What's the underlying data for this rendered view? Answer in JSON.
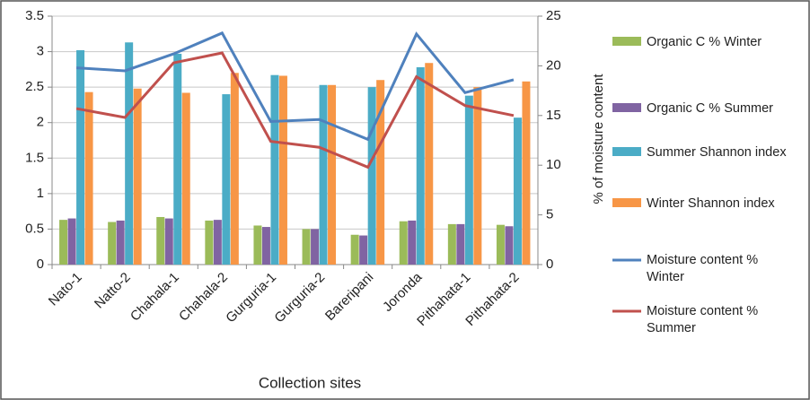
{
  "chart_data": {
    "type": "bar",
    "x_label": "Collection sites",
    "y2_label": "% of moisture content",
    "categories": [
      "Nato-1",
      "Natto-2",
      "Chahala-1",
      "Chahala-2",
      "Gurguria-1",
      "Gurguria-2",
      "Bareripani",
      "Joronda",
      "Pithahata-1",
      "Pithahata-2"
    ],
    "series": [
      {
        "name": "Organic C % Winter",
        "type": "bar",
        "color": "#9bbb59",
        "values": [
          0.63,
          0.6,
          0.67,
          0.62,
          0.55,
          0.5,
          0.42,
          0.61,
          0.57,
          0.56
        ]
      },
      {
        "name": "Organic C % Summer",
        "type": "bar",
        "color": "#8064a2",
        "values": [
          0.65,
          0.62,
          0.65,
          0.63,
          0.53,
          0.5,
          0.41,
          0.62,
          0.57,
          0.54
        ]
      },
      {
        "name": "Summer Shannon index",
        "type": "bar",
        "color": "#4bacc6",
        "values": [
          3.02,
          3.13,
          2.97,
          2.4,
          2.67,
          2.53,
          2.5,
          2.78,
          2.38,
          2.07
        ]
      },
      {
        "name": "Winter Shannon index",
        "type": "bar",
        "color": "#f79646",
        "values": [
          2.43,
          2.48,
          2.42,
          2.7,
          2.66,
          2.53,
          2.6,
          2.84,
          2.5,
          2.58
        ]
      },
      {
        "name": "Moisture content % Winter",
        "type": "line",
        "axis": "y2",
        "color": "#4f81bd",
        "values": [
          19.8,
          19.5,
          21.2,
          23.3,
          14.4,
          14.6,
          12.6,
          23.2,
          17.3,
          18.6
        ]
      },
      {
        "name": "Moisture content % Summer",
        "type": "line",
        "axis": "y2",
        "color": "#c0504d",
        "values": [
          15.7,
          14.8,
          20.3,
          21.3,
          12.4,
          11.8,
          9.8,
          18.9,
          16.0,
          15.0
        ]
      }
    ],
    "ylim": [
      0,
      3.5
    ],
    "yticks": [
      0,
      0.5,
      1,
      1.5,
      2,
      2.5,
      3,
      3.5
    ],
    "y2lim": [
      0,
      25
    ],
    "y2ticks": [
      0,
      5,
      10,
      15,
      20,
      25
    ],
    "grid": true
  }
}
